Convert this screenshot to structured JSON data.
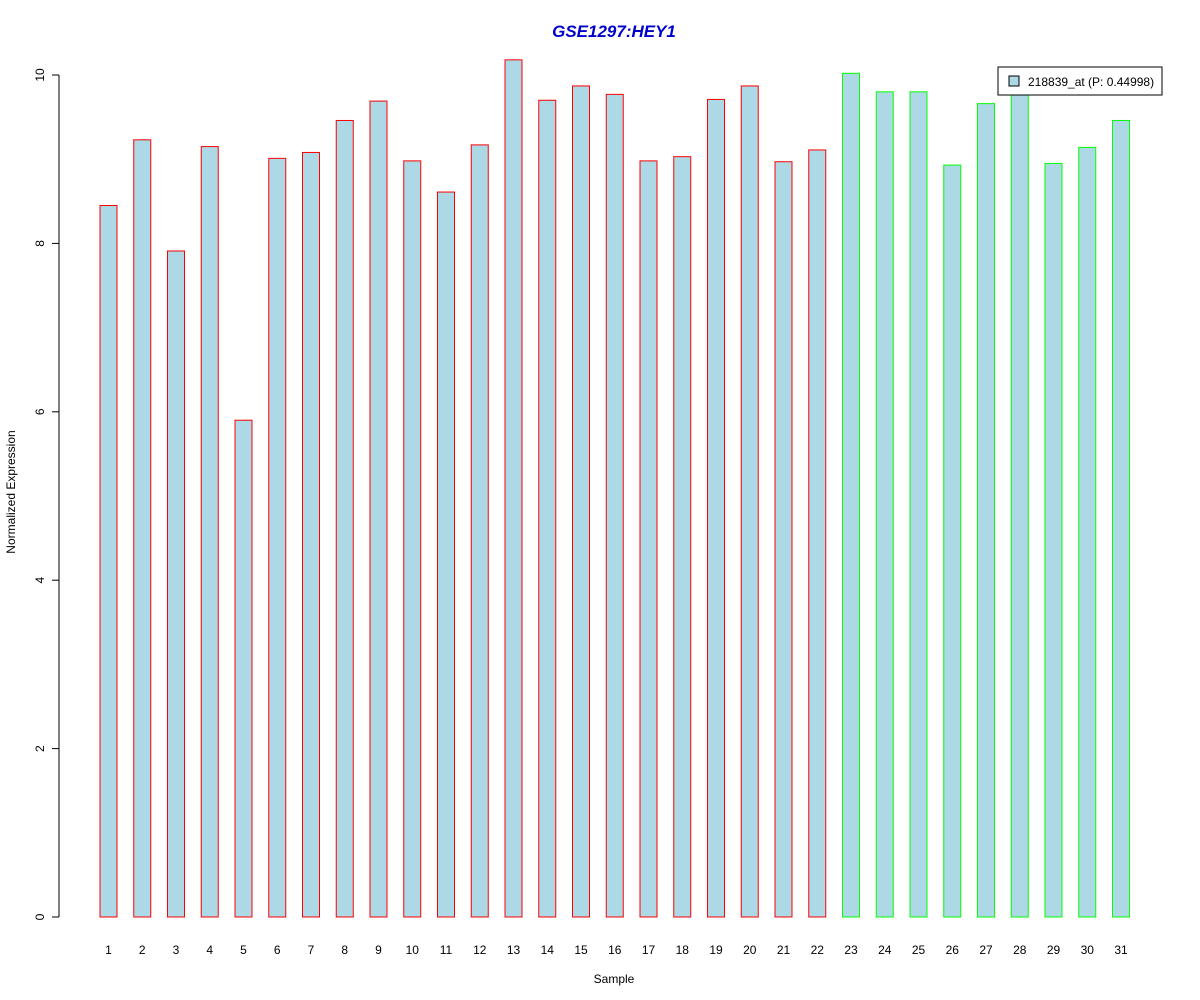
{
  "chart_data": {
    "type": "bar",
    "title": "GSE1297:HEY1",
    "xlabel": "Sample",
    "ylabel": "Normalized Expression",
    "ylim": [
      0,
      10
    ],
    "yticks": [
      "0",
      "2",
      "4",
      "6",
      "8",
      "10"
    ],
    "categories": [
      "1",
      "2",
      "3",
      "4",
      "5",
      "6",
      "7",
      "8",
      "9",
      "10",
      "11",
      "12",
      "13",
      "14",
      "15",
      "16",
      "17",
      "18",
      "19",
      "20",
      "21",
      "22",
      "23",
      "24",
      "25",
      "26",
      "27",
      "28",
      "29",
      "30",
      "31"
    ],
    "values": [
      8.45,
      9.23,
      7.91,
      9.15,
      5.9,
      9.01,
      9.08,
      9.46,
      9.69,
      8.98,
      8.61,
      9.17,
      10.18,
      9.7,
      9.87,
      9.77,
      8.98,
      9.03,
      9.71,
      9.87,
      8.97,
      9.11,
      10.02,
      9.8,
      9.8,
      8.93,
      9.66,
      9.8,
      8.95,
      9.14,
      9.46
    ],
    "bar_fill": "#add8e6",
    "group_colors": [
      "#ff0000",
      "#00ff00"
    ],
    "groups": [
      0,
      0,
      0,
      0,
      0,
      0,
      0,
      0,
      0,
      0,
      0,
      0,
      0,
      0,
      0,
      0,
      0,
      0,
      0,
      0,
      0,
      0,
      1,
      1,
      1,
      1,
      1,
      1,
      1,
      1,
      1
    ],
    "legend": {
      "label": "218839_at (P: 0.44998)",
      "position": "top-right"
    },
    "grid": false
  }
}
